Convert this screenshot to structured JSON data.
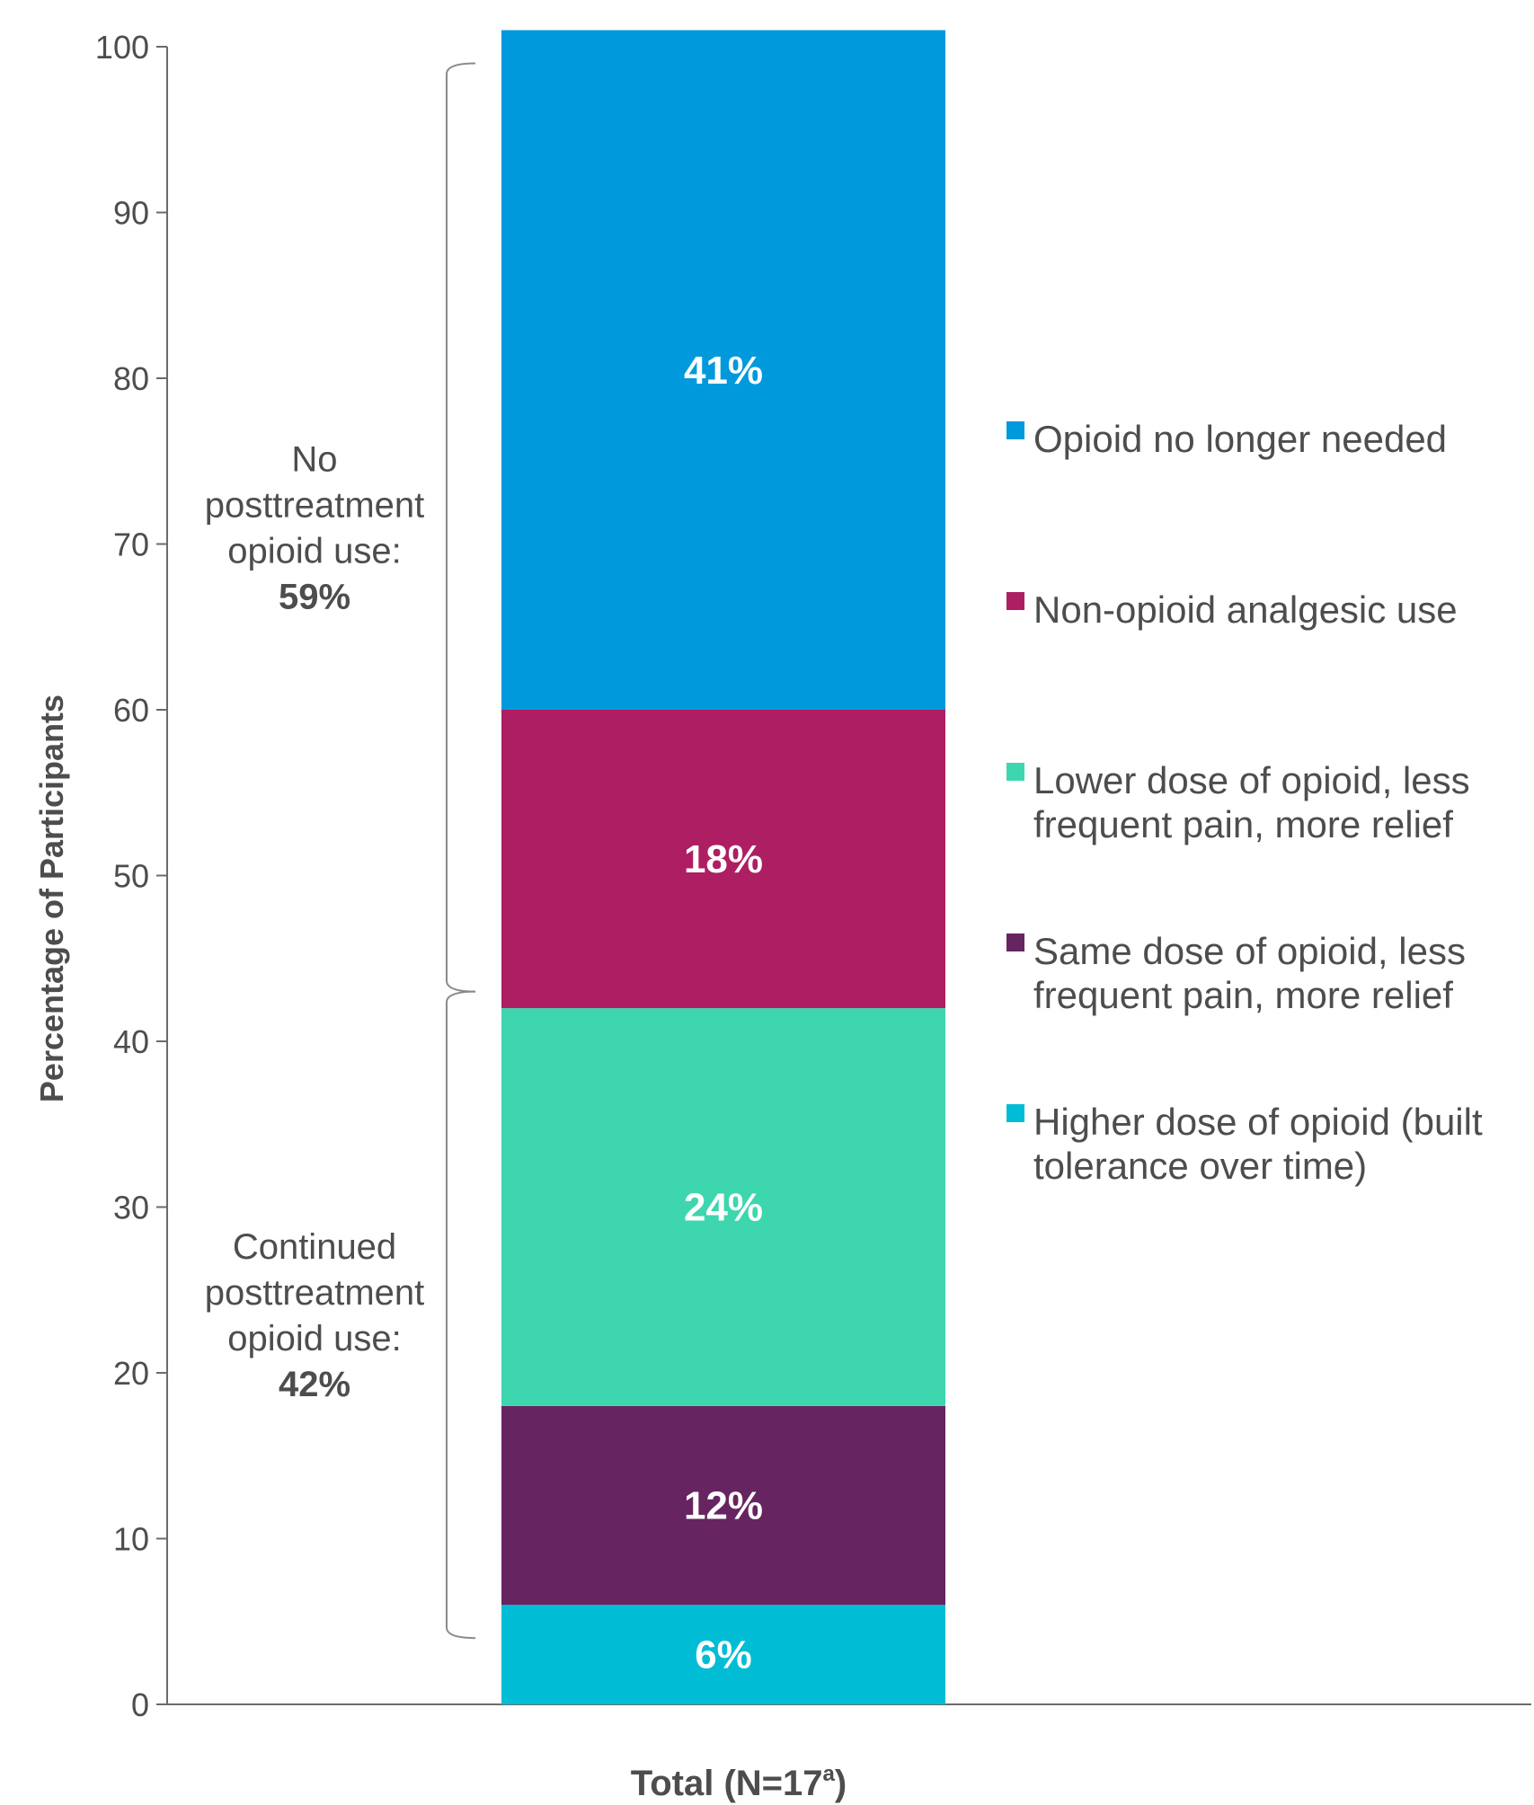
{
  "chart_data": {
    "type": "bar",
    "stacked": true,
    "ylabel": "Percentage of Participants",
    "ylim": [
      0,
      100
    ],
    "yticks": [
      0,
      10,
      20,
      30,
      40,
      50,
      60,
      70,
      80,
      90,
      100
    ],
    "category": {
      "label": "Total (N=17",
      "superscript": "a",
      "suffix": ")"
    },
    "segments": [
      {
        "name": "Higher dose of opioid (built tolerance over time)",
        "legend_lines": [
          "Higher dose of opioid (built",
          "tolerance over time)"
        ],
        "value": 6,
        "label": "6%",
        "color": "#00bcd4"
      },
      {
        "name": "Same dose of opioid, less frequent pain, more relief",
        "legend_lines": [
          "Same dose of opioid, less",
          "frequent pain, more relief"
        ],
        "value": 12,
        "label": "12%",
        "color": "#662461"
      },
      {
        "name": "Lower dose of opioid, less frequent pain, more relief",
        "legend_lines": [
          "Lower dose of opioid, less",
          "frequent pain, more relief"
        ],
        "value": 24,
        "label": "24%",
        "color": "#3dd6af"
      },
      {
        "name": "Non-opioid analgesic use",
        "legend_lines": [
          "Non-opioid analgesic use"
        ],
        "value": 18,
        "label": "18%",
        "color": "#ad1e62"
      },
      {
        "name": "Opioid no longer needed",
        "legend_lines": [
          "Opioid no longer needed"
        ],
        "value": 41,
        "label": "41%",
        "color": "#0099dc"
      }
    ],
    "legend_order": [
      4,
      3,
      2,
      1,
      0
    ],
    "groups": [
      {
        "lines": [
          "No",
          "posttreatment",
          "opioid use:"
        ],
        "pct": "59%",
        "from": 43,
        "to": 99
      },
      {
        "lines": [
          "Continued",
          "posttreatment",
          "opioid use:"
        ],
        "pct": "42%",
        "from": 4,
        "to": 43
      }
    ]
  }
}
